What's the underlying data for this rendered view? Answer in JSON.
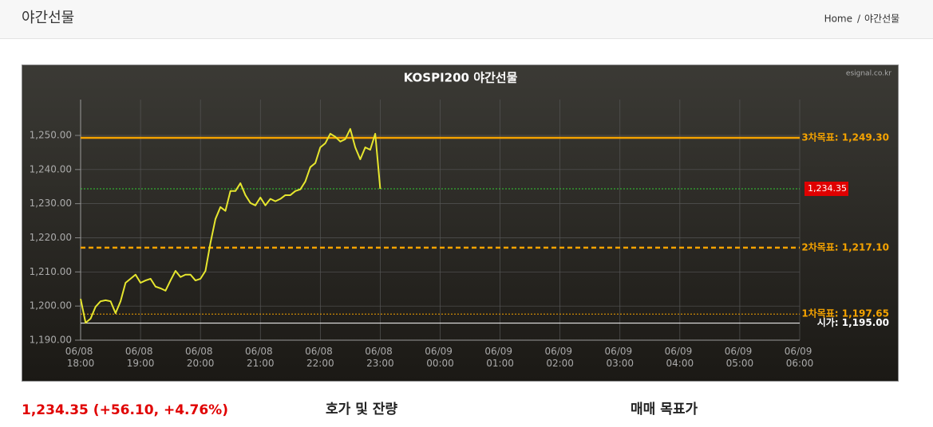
{
  "header": {
    "title": "야간선물",
    "breadcrumb": [
      "Home",
      "/",
      "야간선물"
    ]
  },
  "chart_data": {
    "type": "line",
    "title": "KOSPI200 야간선물",
    "source": "esignal.co.kr",
    "x": [
      "06/08 18:00",
      "06/08 18:05",
      "06/08 18:10",
      "06/08 18:15",
      "06/08 18:20",
      "06/08 18:25",
      "06/08 18:30",
      "06/08 18:35",
      "06/08 18:40",
      "06/08 18:45",
      "06/08 18:50",
      "06/08 18:55",
      "06/08 19:00",
      "06/08 19:05",
      "06/08 19:10",
      "06/08 19:15",
      "06/08 19:20",
      "06/08 19:25",
      "06/08 19:30",
      "06/08 19:35",
      "06/08 19:40",
      "06/08 19:45",
      "06/08 19:50",
      "06/08 19:55",
      "06/08 20:00",
      "06/08 20:05",
      "06/08 20:10",
      "06/08 20:15",
      "06/08 20:20",
      "06/08 20:25",
      "06/08 20:30",
      "06/08 20:35",
      "06/08 20:40",
      "06/08 20:45",
      "06/08 20:50",
      "06/08 20:55",
      "06/08 21:00",
      "06/08 21:05",
      "06/08 21:10",
      "06/08 21:15",
      "06/08 21:20",
      "06/08 21:25",
      "06/08 21:30",
      "06/08 21:35",
      "06/08 21:40",
      "06/08 21:45",
      "06/08 21:50",
      "06/08 21:55",
      "06/08 22:00",
      "06/08 22:05",
      "06/08 22:10",
      "06/08 22:15",
      "06/08 22:20",
      "06/08 22:25",
      "06/08 22:30",
      "06/08 22:35",
      "06/08 22:40",
      "06/08 22:45",
      "06/08 22:50",
      "06/08 22:55",
      "06/08 23:00"
    ],
    "series": [
      {
        "color": "#e6e62e",
        "values": [
          1202.1,
          1195.1,
          1196.3,
          1199.8,
          1201.4,
          1201.7,
          1201.4,
          1197.9,
          1201.4,
          1206.8,
          1208,
          1209.2,
          1206.8,
          1207.5,
          1208,
          1205.7,
          1205.2,
          1204.5,
          1207.5,
          1210.3,
          1208.5,
          1209.2,
          1209.2,
          1207.5,
          1208,
          1210.3,
          1218.5,
          1225.5,
          1229,
          1227.9,
          1233.7,
          1233.7,
          1236,
          1232.5,
          1230.2,
          1229.5,
          1231.8,
          1229.5,
          1231.4,
          1230.7,
          1231.4,
          1232.5,
          1232.5,
          1233.7,
          1234.2,
          1236.5,
          1240.7,
          1241.9,
          1246.5,
          1247.7,
          1250.5,
          1249.6,
          1248.2,
          1248.9,
          1251.9,
          1246.5,
          1243,
          1246.5,
          1245.8,
          1250.5,
          1234.35
        ]
      }
    ],
    "xlim": [
      "06/08 18:00",
      "06/09 06:00"
    ],
    "xticks": [
      "06/08 18:00",
      "06/08 19:00",
      "06/08 20:00",
      "06/08 21:00",
      "06/08 22:00",
      "06/08 23:00",
      "06/09 00:00",
      "06/09 01:00",
      "06/09 02:00",
      "06/09 03:00",
      "06/09 04:00",
      "06/09 05:00",
      "06/09 06:00"
    ],
    "ylim": [
      1190,
      1260.5
    ],
    "yticks": [
      {
        "value": 1190,
        "label": "1,190.00"
      },
      {
        "value": 1200,
        "label": "1,200.00"
      },
      {
        "value": 1210,
        "label": "1,210.00"
      },
      {
        "value": 1220,
        "label": "1,220.00"
      },
      {
        "value": 1230,
        "label": "1,230.00"
      },
      {
        "value": 1240,
        "label": "1,240.00"
      },
      {
        "value": 1250,
        "label": "1,250.00"
      }
    ],
    "grid": true,
    "reference_lines": [
      {
        "value": 1249.3,
        "label": "3차목표: 1,249.30",
        "color": "#f5a300",
        "style": "solid"
      },
      {
        "value": 1234.35,
        "label": "1,234.35",
        "color": "#33cc33",
        "style": "dotted",
        "label_box": "#e00000"
      },
      {
        "value": 1217.1,
        "label": "2차목표: 1,217.10",
        "color": "#f5a300",
        "style": "dashed"
      },
      {
        "value": 1197.65,
        "label": "1차목표: 1,197.65",
        "color": "#f5a300",
        "style": "dotted"
      },
      {
        "value": 1195,
        "label": "시가: 1,195.00",
        "color": "#ffffff",
        "style": "solid"
      }
    ]
  },
  "summary": {
    "price": "1,234.35 (+56.10, +4.76%)",
    "sections": [
      "호가 및 잔량",
      "매매 목표가"
    ]
  }
}
